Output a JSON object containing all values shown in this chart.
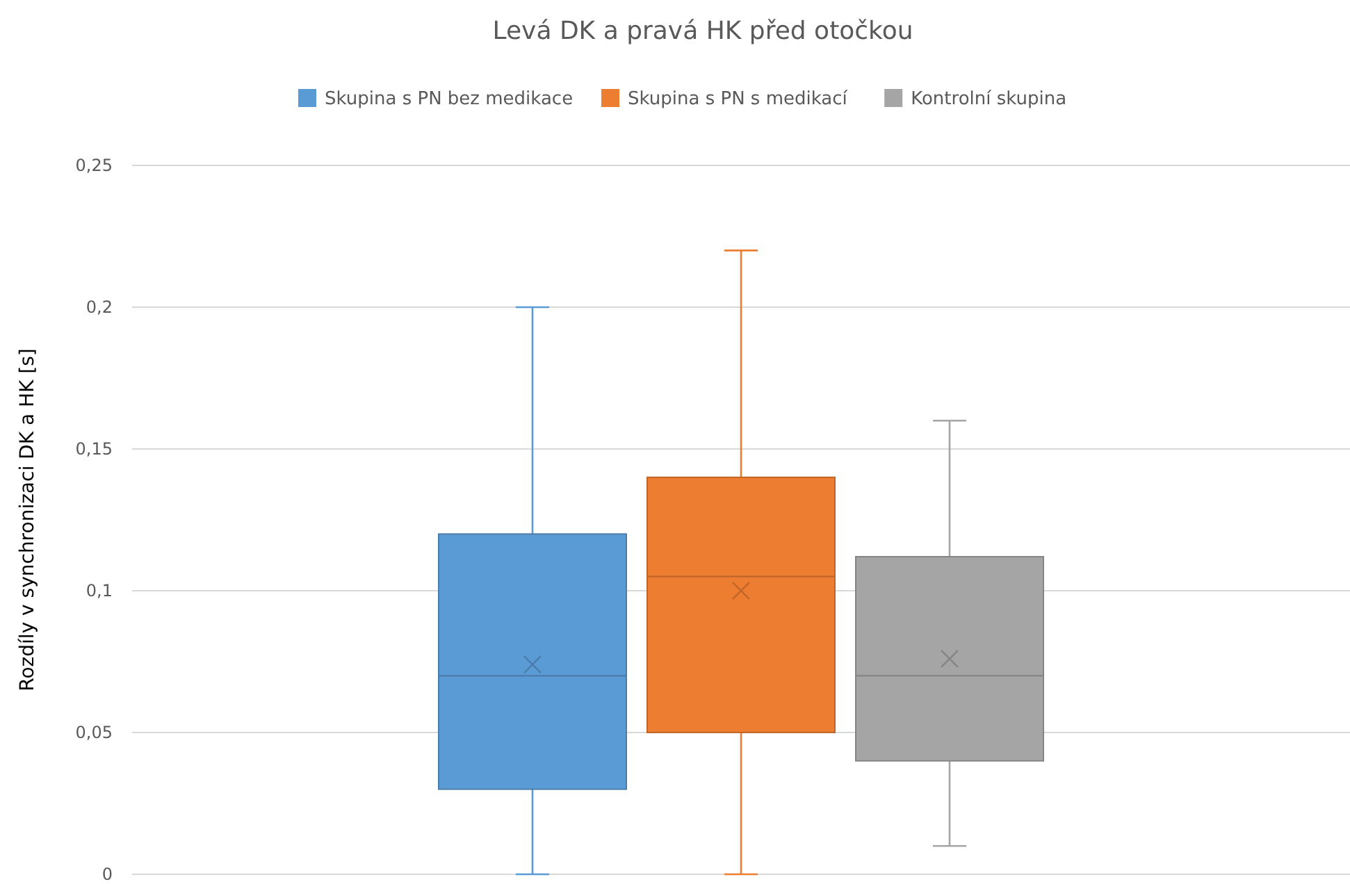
{
  "chart_data": {
    "type": "box",
    "title": "Levá DK a pravá HK před otočkou",
    "ylabel": "Rozdíly v synchronizaci DK a HK [s]",
    "categories": [
      null
    ],
    "series": [
      {
        "name": "Skupina s PN bez medikace",
        "color": "#5b9bd5",
        "boxes": [
          {
            "low": 0,
            "q1": 0.03,
            "median": 0.07,
            "q3": 0.12,
            "high": 0.2,
            "mean": 0.074
          }
        ]
      },
      {
        "name": "Skupina s PN s medikací",
        "color": "#ed7d31",
        "boxes": [
          {
            "low": 0,
            "q1": 0.05,
            "median": 0.105,
            "q3": 0.14,
            "high": 0.22,
            "mean": 0.1
          }
        ]
      },
      {
        "name": "Kontrolní skupina",
        "color": "#a5a5a5",
        "boxes": [
          {
            "low": 0.01,
            "q1": 0.04,
            "median": 0.07,
            "q3": 0.112,
            "high": 0.16,
            "mean": 0.076
          }
        ]
      }
    ],
    "ylim": [
      0,
      0.25
    ],
    "yticks": [
      0,
      {
        "value": 0.05,
        "label": "0,05"
      },
      {
        "value": 0.1,
        "label": "0,1"
      },
      {
        "value": 0.15,
        "label": "0,15"
      },
      {
        "value": 0.2,
        "label": "0,2"
      },
      {
        "value": 0.25,
        "label": "0,25"
      }
    ],
    "grid": "y",
    "legend": "top",
    "marker": "cross"
  }
}
